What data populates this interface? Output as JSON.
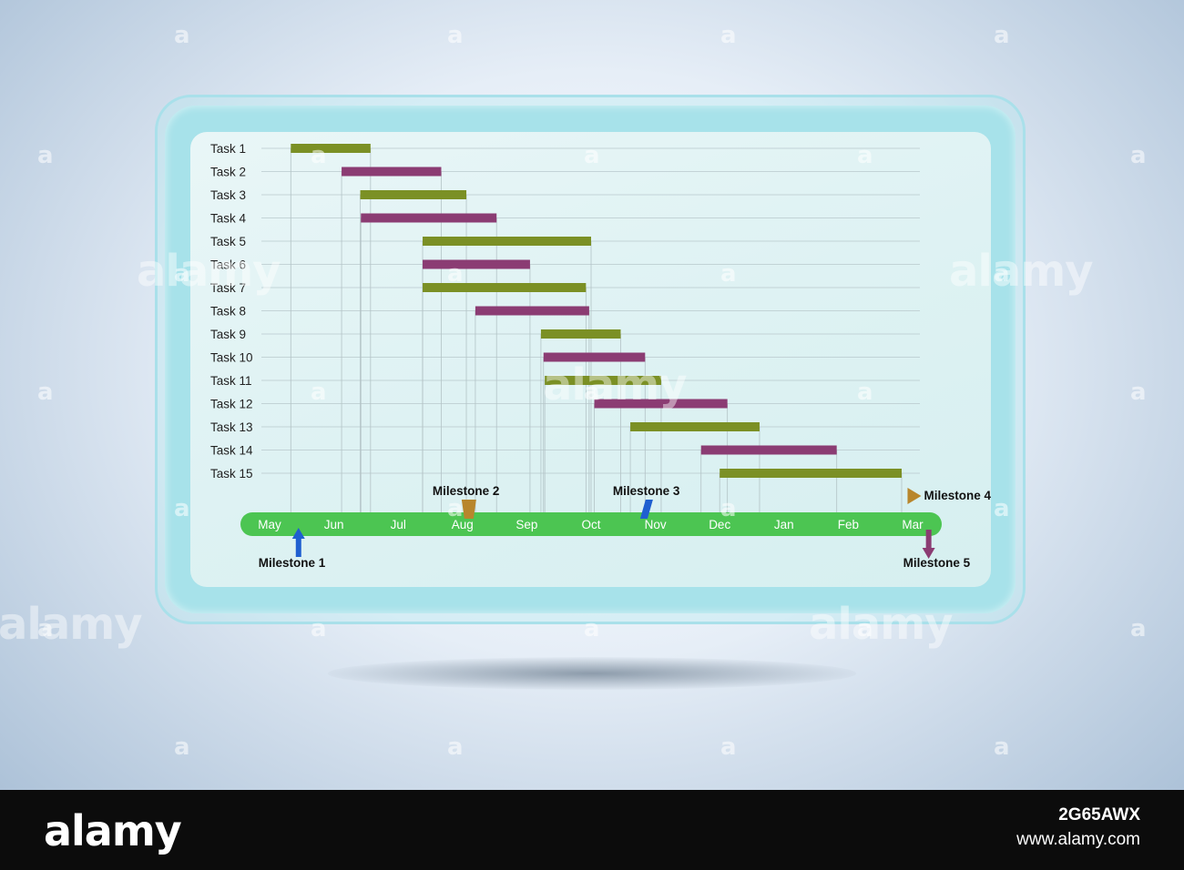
{
  "chart_data": {
    "type": "gantt",
    "months": [
      "May",
      "Jun",
      "Jul",
      "Aug",
      "Sep",
      "Oct",
      "Nov",
      "Dec",
      "Jan",
      "Feb",
      "Mar"
    ],
    "tasks": [
      {
        "name": "Task 1",
        "start": 0.33,
        "end": 1.57,
        "color": "#7b9025"
      },
      {
        "name": "Task 2",
        "start": 1.12,
        "end": 2.67,
        "color": "#8b3c73"
      },
      {
        "name": "Task 3",
        "start": 1.41,
        "end": 3.06,
        "color": "#7b9025"
      },
      {
        "name": "Task 4",
        "start": 1.42,
        "end": 3.53,
        "color": "#8b3c73"
      },
      {
        "name": "Task 5",
        "start": 2.38,
        "end": 5.0,
        "color": "#7b9025"
      },
      {
        "name": "Task 6",
        "start": 2.38,
        "end": 4.05,
        "color": "#8b3c73"
      },
      {
        "name": "Task 7",
        "start": 2.38,
        "end": 4.92,
        "color": "#7b9025"
      },
      {
        "name": "Task 8",
        "start": 3.2,
        "end": 4.97,
        "color": "#8b3c73"
      },
      {
        "name": "Task 9",
        "start": 4.22,
        "end": 5.46,
        "color": "#7b9025"
      },
      {
        "name": "Task 10",
        "start": 4.26,
        "end": 5.84,
        "color": "#8b3c73"
      },
      {
        "name": "Task 11",
        "start": 4.28,
        "end": 6.09,
        "color": "#7b9025"
      },
      {
        "name": "Task 12",
        "start": 5.05,
        "end": 7.12,
        "color": "#8b3c73"
      },
      {
        "name": "Task 13",
        "start": 5.61,
        "end": 7.62,
        "color": "#7b9025"
      },
      {
        "name": "Task 14",
        "start": 6.71,
        "end": 8.82,
        "color": "#8b3c73"
      },
      {
        "name": "Task 15",
        "start": 7.0,
        "end": 9.83,
        "color": "#7b9025"
      }
    ],
    "milestones": [
      {
        "name": "Milestone 1",
        "month": 0.45,
        "marker": "arrow-up",
        "color": "#1f5fd0"
      },
      {
        "name": "Milestone 2",
        "month": 3.1,
        "marker": "trapezoid",
        "color": "#b8862c"
      },
      {
        "name": "Milestone 3",
        "month": 5.82,
        "marker": "parallelogram",
        "color": "#1f5fd0"
      },
      {
        "name": "Milestone 4",
        "month": 9.95,
        "marker": "triangle-right",
        "color": "#b8862c"
      },
      {
        "name": "Milestone 5",
        "month": 10.25,
        "marker": "arrow-down",
        "color": "#8b3c73"
      }
    ],
    "timeline_color": "#4cc552",
    "grid": true
  },
  "watermark": {
    "brand": "alamy",
    "image_id": "2G65AWX",
    "site": "www.alamy.com"
  }
}
